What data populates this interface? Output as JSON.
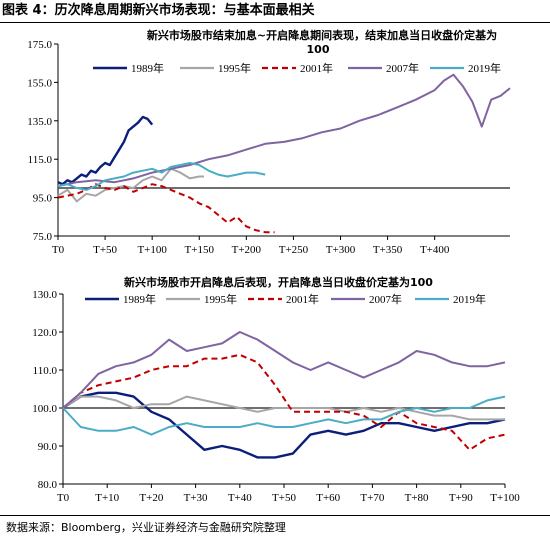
{
  "figure_title": "图表 4：历次降息周期新兴市场表现：与基本面最相关",
  "source": "数据来源：Bloomberg，兴业证券经济与金融研究院整理",
  "colors": {
    "1989年": "#0b1f7a",
    "1995年": "#a6a6a6",
    "2001年": "#c00000",
    "2007年": "#8064a2",
    "2019年": "#4bacc6",
    "baseline": "#404040"
  },
  "chart_data": [
    {
      "type": "line",
      "title_line1": "新兴市场股市结束加息~开启降息期间表现，结束加息当日收盘价定基为",
      "title_line2": "100",
      "legend": [
        "1989年",
        "1995年",
        "2001年",
        "2007年",
        "2019年"
      ],
      "ylim": [
        75,
        175
      ],
      "yticks": [
        "75.0",
        "95.0",
        "115.0",
        "135.0",
        "155.0",
        "175.0"
      ],
      "xlim": [
        0,
        480
      ],
      "xticks": [
        "T0",
        "T+50",
        "T+100",
        "T+150",
        "T+200",
        "T+250",
        "T+300",
        "T+350",
        "T+400"
      ],
      "xtick_values": [
        0,
        50,
        100,
        150,
        200,
        250,
        300,
        350,
        400
      ],
      "baseline": 100,
      "series": [
        {
          "name": "1989年",
          "dash": "solid",
          "width": 2.4,
          "x": [
            0,
            5,
            10,
            15,
            20,
            25,
            30,
            35,
            40,
            45,
            50,
            55,
            60,
            65,
            70,
            75,
            80,
            85,
            90,
            95,
            100
          ],
          "y": [
            103,
            102,
            104,
            103,
            105,
            107,
            106,
            109,
            108,
            111,
            113,
            112,
            116,
            120,
            124,
            130,
            132,
            134,
            137,
            136,
            133
          ]
        },
        {
          "name": "1995年",
          "dash": "solid",
          "width": 2,
          "x": [
            0,
            10,
            20,
            30,
            40,
            50,
            60,
            70,
            80,
            90,
            100,
            110,
            120,
            130,
            140,
            150,
            155
          ],
          "y": [
            96,
            99,
            93,
            97,
            96,
            99,
            100,
            101,
            100,
            104,
            106,
            104,
            110,
            108,
            105,
            106,
            106
          ]
        },
        {
          "name": "2001年",
          "dash": "6,4",
          "width": 2,
          "x": [
            0,
            10,
            20,
            30,
            40,
            50,
            60,
            70,
            80,
            90,
            100,
            110,
            120,
            130,
            140,
            150,
            160,
            170,
            180,
            190,
            200,
            210,
            220,
            230
          ],
          "y": [
            95,
            96,
            97,
            99,
            102,
            100,
            99,
            101,
            98,
            100,
            102,
            101,
            99,
            97,
            95,
            92,
            90,
            86,
            82,
            85,
            80,
            78,
            77,
            77
          ]
        },
        {
          "name": "2007年",
          "dash": "solid",
          "width": 2,
          "x": [
            0,
            20,
            40,
            60,
            80,
            100,
            120,
            140,
            160,
            180,
            200,
            220,
            240,
            260,
            280,
            300,
            320,
            340,
            360,
            380,
            400,
            410,
            420,
            430,
            440,
            450,
            460,
            470,
            480
          ],
          "y": [
            101,
            103,
            104,
            103,
            105,
            108,
            110,
            112,
            115,
            117,
            120,
            123,
            124,
            126,
            129,
            131,
            135,
            138,
            142,
            146,
            151,
            156,
            159,
            153,
            145,
            132,
            146,
            148,
            152
          ]
        },
        {
          "name": "2019年",
          "dash": "solid",
          "width": 2,
          "x": [
            0,
            10,
            20,
            30,
            40,
            50,
            60,
            70,
            80,
            90,
            100,
            110,
            120,
            130,
            140,
            150,
            160,
            170,
            180,
            190,
            200,
            210,
            220
          ],
          "y": [
            101,
            102,
            100,
            99,
            101,
            104,
            105,
            106,
            108,
            109,
            110,
            108,
            111,
            112,
            113,
            112,
            109,
            107,
            106,
            107,
            108,
            108,
            107
          ]
        }
      ]
    },
    {
      "type": "line",
      "title_line1": "新兴市场股市开启降息后表现，开启降息当日收盘价定基为100",
      "legend": [
        "1989年",
        "1995年",
        "2001年",
        "2007年",
        "2019年"
      ],
      "ylim": [
        80,
        130
      ],
      "yticks": [
        "80.0",
        "90.0",
        "100.0",
        "110.0",
        "120.0",
        "130.0"
      ],
      "xlim": [
        0,
        100
      ],
      "xticks": [
        "T0",
        "T+10",
        "T+20",
        "T+30",
        "T+40",
        "T+50",
        "T+60",
        "T+70",
        "T+80",
        "T+90",
        "T+100"
      ],
      "xtick_values": [
        0,
        10,
        20,
        30,
        40,
        50,
        60,
        70,
        80,
        90,
        100
      ],
      "baseline": 100,
      "series": [
        {
          "name": "1989年",
          "dash": "solid",
          "width": 2.4,
          "x": [
            0,
            4,
            8,
            12,
            16,
            20,
            24,
            28,
            32,
            36,
            40,
            44,
            48,
            52,
            56,
            60,
            64,
            68,
            72,
            76,
            80,
            84,
            88,
            92,
            96,
            100
          ],
          "y": [
            100,
            103,
            104,
            104,
            103,
            99,
            97,
            93,
            89,
            90,
            89,
            87,
            87,
            88,
            93,
            94,
            93,
            94,
            96,
            96,
            95,
            94,
            95,
            96,
            96,
            97
          ]
        },
        {
          "name": "1995年",
          "dash": "solid",
          "width": 2,
          "x": [
            0,
            4,
            8,
            12,
            16,
            20,
            24,
            28,
            32,
            36,
            40,
            44,
            48,
            52,
            56,
            60,
            64,
            68,
            72,
            76,
            80,
            84,
            88,
            92,
            96,
            100
          ],
          "y": [
            100,
            103,
            103,
            102,
            100,
            101,
            101,
            103,
            102,
            101,
            100,
            99,
            100,
            100,
            100,
            100,
            99,
            100,
            99,
            100,
            99,
            98,
            98,
            97,
            97,
            97
          ]
        },
        {
          "name": "2001年",
          "dash": "6,4",
          "width": 2,
          "x": [
            0,
            4,
            8,
            12,
            16,
            20,
            24,
            28,
            32,
            36,
            40,
            44,
            48,
            52,
            56,
            60,
            64,
            68,
            72,
            76,
            80,
            84,
            88,
            92,
            96,
            100
          ],
          "y": [
            100,
            104,
            106,
            107,
            108,
            110,
            111,
            111,
            113,
            113,
            114,
            112,
            106,
            99,
            99,
            99,
            99,
            98,
            95,
            99,
            96,
            95,
            94,
            89,
            92,
            93
          ]
        },
        {
          "name": "2007年",
          "dash": "solid",
          "width": 2,
          "x": [
            0,
            4,
            8,
            12,
            16,
            20,
            24,
            28,
            32,
            36,
            40,
            44,
            48,
            52,
            56,
            60,
            64,
            68,
            72,
            76,
            80,
            84,
            88,
            92,
            96,
            100
          ],
          "y": [
            100,
            104,
            109,
            111,
            112,
            114,
            118,
            115,
            116,
            117,
            120,
            118,
            115,
            112,
            110,
            112,
            110,
            108,
            110,
            112,
            115,
            114,
            112,
            111,
            111,
            112
          ]
        },
        {
          "name": "2019年",
          "dash": "solid",
          "width": 2,
          "x": [
            0,
            4,
            8,
            12,
            16,
            20,
            24,
            28,
            32,
            36,
            40,
            44,
            48,
            52,
            56,
            60,
            64,
            68,
            72,
            76,
            80,
            84,
            88,
            92,
            96,
            100
          ],
          "y": [
            100,
            95,
            94,
            94,
            95,
            93,
            95,
            96,
            95,
            95,
            95,
            96,
            95,
            95,
            96,
            97,
            96,
            97,
            97,
            99,
            100,
            99,
            100,
            100,
            102,
            103
          ]
        }
      ]
    }
  ]
}
